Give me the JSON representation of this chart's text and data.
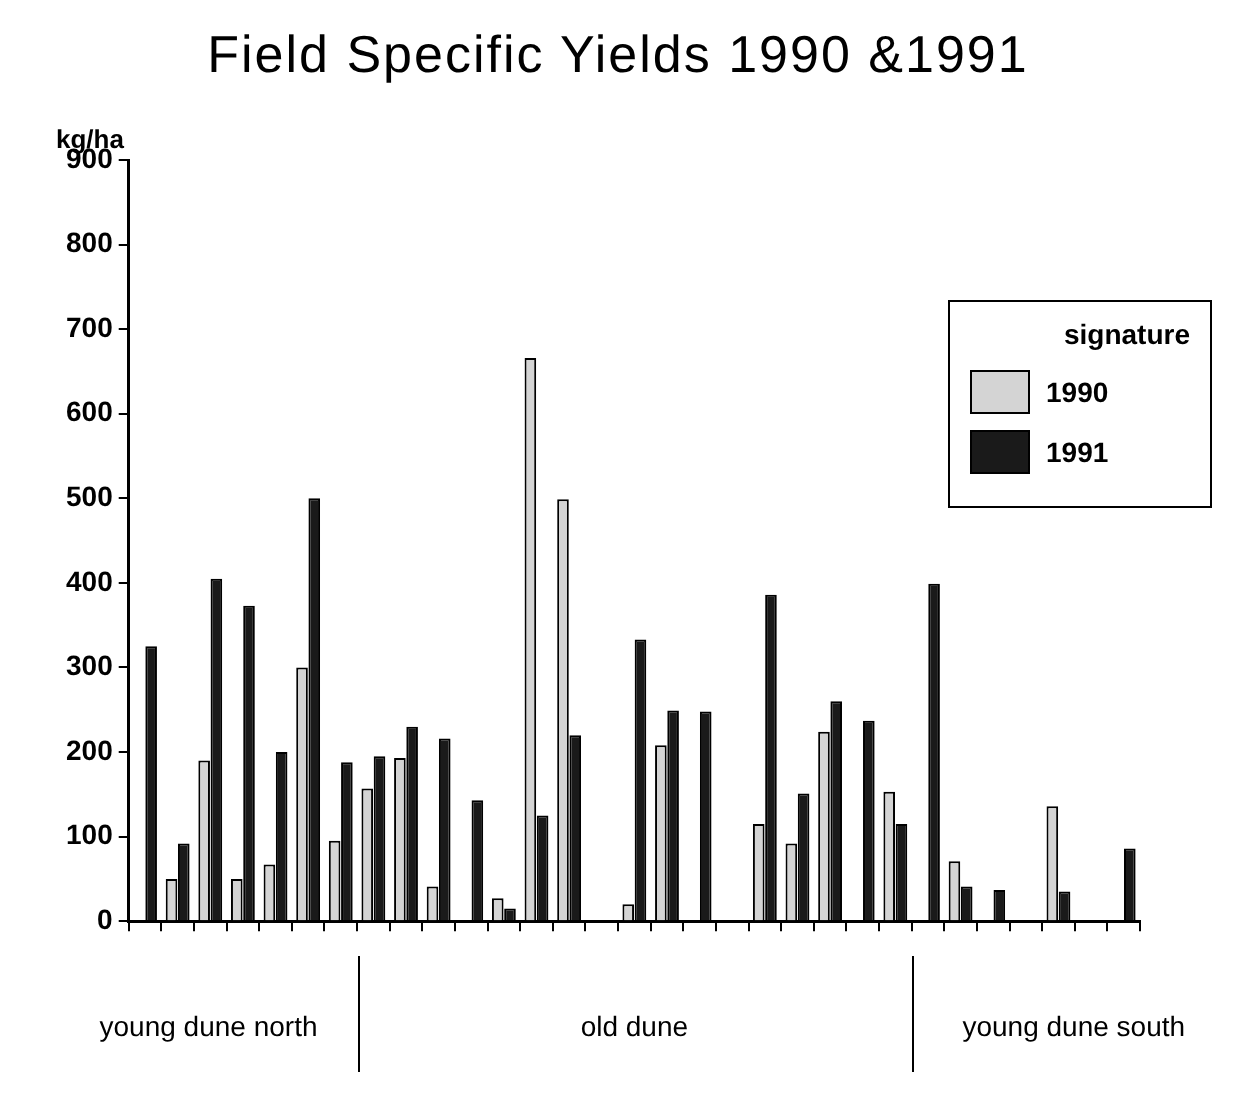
{
  "chart_data": {
    "type": "bar",
    "title": "Field Specific Yields 1990 &1991",
    "ylabel": "kg/ha",
    "categories": [
      null,
      null,
      null,
      null,
      null,
      null,
      null,
      null,
      null,
      null,
      null,
      null,
      null,
      null,
      null,
      null,
      null,
      null,
      null,
      null,
      null,
      null,
      null,
      null,
      null,
      null,
      null,
      null,
      null,
      null,
      null
    ],
    "series": [
      {
        "name": "1990",
        "color": "#d4d4d4",
        "values": [
          0,
          50,
          190,
          50,
          67,
          300,
          95,
          157,
          193,
          41,
          0,
          27,
          666,
          499,
          0,
          20,
          208,
          0,
          0,
          115,
          92,
          224,
          0,
          153,
          0,
          71,
          0,
          0,
          136,
          0,
          0
        ]
      },
      {
        "name": "1991",
        "color": "#1a1a1a",
        "values": [
          325,
          92,
          405,
          373,
          200,
          500,
          188,
          195,
          230,
          216,
          143,
          15,
          125,
          220,
          0,
          333,
          249,
          248,
          0,
          386,
          151,
          260,
          237,
          115,
          399,
          41,
          37,
          0,
          35,
          0,
          86
        ]
      }
    ],
    "ylim": [
      0,
      900
    ],
    "yticks": [
      0,
      100,
      200,
      300,
      400,
      500,
      600,
      700,
      800,
      900
    ],
    "grid": false,
    "legend": "top right",
    "legend_title": "signature",
    "annotations": [
      "young dune north",
      "old dune",
      "young dune south"
    ]
  }
}
